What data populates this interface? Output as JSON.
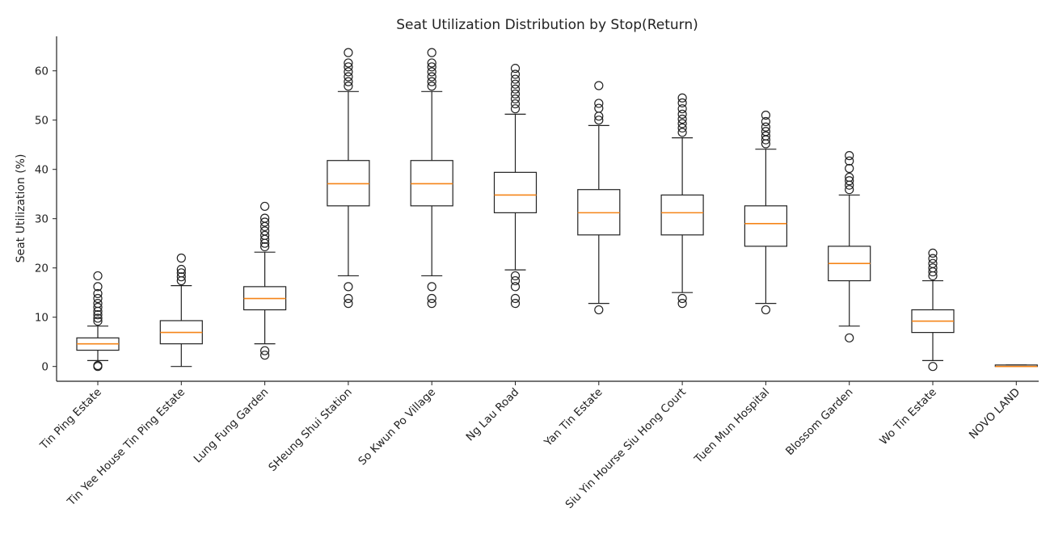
{
  "chart_data": {
    "type": "box",
    "title": "Seat Utilization Distribution by Stop(Return)",
    "xlabel": "",
    "ylabel": "Seat Utilization (%)",
    "ylim": [
      -3,
      67
    ],
    "yticks": [
      0,
      10,
      20,
      30,
      40,
      50,
      60
    ],
    "grid": false,
    "median_color": "#f58518",
    "box_color": "#222222",
    "categories": [
      "Tin Ping Estate",
      "Tin Yee House Tin Ping Estate",
      "Lung Fung Garden",
      "SHeung Shui Station",
      "So Kwun Po Village",
      "Ng Lau Road",
      "Yan Tin Estate",
      "Siu Yin Hourse Siu Hong Court",
      "Tuen Mun Hospital",
      "Blossom Garden",
      "Wo Tin Estate",
      "NOVO LAND"
    ],
    "boxes": [
      {
        "whislo": 1.2,
        "q1": 3.3,
        "med": 4.6,
        "q3": 5.8,
        "whishi": 8.2,
        "fliers": [
          0,
          0.2,
          9.2,
          9.8,
          10.5,
          11.2,
          12.0,
          12.8,
          13.8,
          14.8,
          16.2,
          18.4
        ]
      },
      {
        "whislo": 0,
        "q1": 4.6,
        "med": 6.9,
        "q3": 9.3,
        "whishi": 16.4,
        "fliers": [
          17.4,
          18.2,
          19.0,
          19.7,
          22.0
        ]
      },
      {
        "whislo": 4.6,
        "q1": 11.5,
        "med": 13.8,
        "q3": 16.2,
        "whishi": 23.2,
        "fliers": [
          2.3,
          3.2,
          24.3,
          25.0,
          25.8,
          26.6,
          27.5,
          28.4,
          29.3,
          30.1,
          32.5
        ]
      },
      {
        "whislo": 18.4,
        "q1": 32.6,
        "med": 37.1,
        "q3": 41.8,
        "whishi": 55.8,
        "fliers": [
          12.8,
          13.8,
          16.2,
          56.9,
          57.8,
          58.8,
          59.8,
          60.8,
          61.6,
          63.7
        ]
      },
      {
        "whislo": 18.4,
        "q1": 32.6,
        "med": 37.1,
        "q3": 41.8,
        "whishi": 55.8,
        "fliers": [
          12.8,
          13.8,
          16.2,
          56.9,
          57.8,
          58.8,
          59.8,
          60.8,
          61.6,
          63.7
        ]
      },
      {
        "whislo": 19.6,
        "q1": 31.2,
        "med": 34.8,
        "q3": 39.4,
        "whishi": 51.2,
        "fliers": [
          12.8,
          13.8,
          16.2,
          17.4,
          18.4,
          52.3,
          53.3,
          54.3,
          55.3,
          56.3,
          57.3,
          58.3,
          59.3,
          60.5
        ]
      },
      {
        "whislo": 12.8,
        "q1": 26.7,
        "med": 31.2,
        "q3": 35.9,
        "whishi": 48.9,
        "fliers": [
          11.5,
          50.0,
          50.8,
          52.4,
          53.4,
          57.0
        ]
      },
      {
        "whislo": 15.0,
        "q1": 26.7,
        "med": 31.2,
        "q3": 34.8,
        "whishi": 46.4,
        "fliers": [
          12.8,
          13.8,
          47.5,
          48.4,
          49.3,
          50.2,
          51.2,
          52.3,
          53.5,
          54.5
        ]
      },
      {
        "whislo": 12.8,
        "q1": 24.4,
        "med": 29.0,
        "q3": 32.6,
        "whishi": 44.1,
        "fliers": [
          11.5,
          45.2,
          46.0,
          46.8,
          47.7,
          48.6,
          49.7,
          51.0
        ]
      },
      {
        "whislo": 8.2,
        "q1": 17.4,
        "med": 20.9,
        "q3": 24.4,
        "whishi": 34.8,
        "fliers": [
          5.8,
          35.9,
          36.8,
          37.7,
          38.4,
          40.2,
          41.7,
          42.8
        ]
      },
      {
        "whislo": 1.2,
        "q1": 6.9,
        "med": 9.2,
        "q3": 11.5,
        "whishi": 17.4,
        "fliers": [
          0,
          18.4,
          19.2,
          20.0,
          20.9,
          21.9,
          23.0
        ]
      },
      {
        "whislo": 0,
        "q1": 0,
        "med": 0,
        "q3": 0.3,
        "whishi": 0.3,
        "fliers": []
      }
    ]
  }
}
